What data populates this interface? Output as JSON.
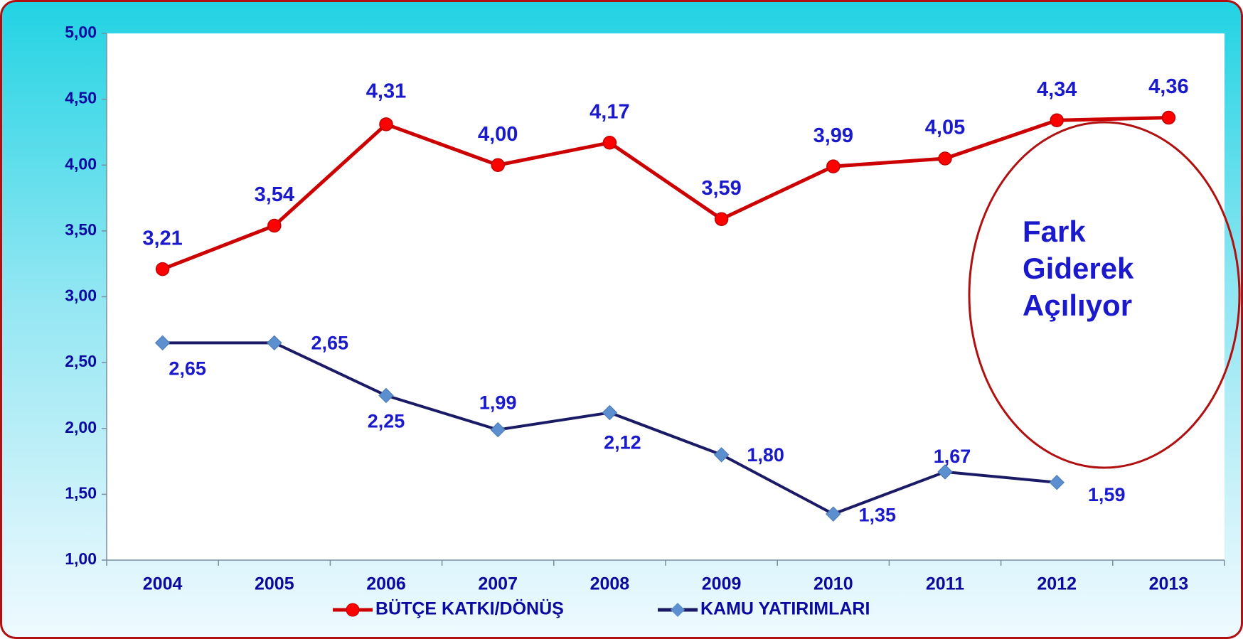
{
  "chart_data": {
    "type": "line",
    "categories": [
      "2004",
      "2005",
      "2006",
      "2007",
      "2008",
      "2009",
      "2010",
      "2011",
      "2012",
      "2013"
    ],
    "series": [
      {
        "name": "BÜTÇE KATKI/DÖNÜŞ",
        "color": "#cc0000",
        "marker_color": "#ff0000",
        "values": [
          3.21,
          3.54,
          4.31,
          4.0,
          4.17,
          3.59,
          3.99,
          4.05,
          4.34,
          4.36
        ],
        "value_labels": [
          "3,21",
          "3,54",
          "4,31",
          "4,00",
          "4,17",
          "3,59",
          "3,99",
          "4,05",
          "4,34",
          "4,36"
        ]
      },
      {
        "name": "KAMU YATIRIMLARI",
        "color": "#1a1a66",
        "marker_color": "#5b8fd0",
        "values": [
          2.65,
          2.65,
          2.25,
          1.99,
          2.12,
          1.8,
          1.35,
          1.67,
          1.59,
          null
        ],
        "value_labels": [
          "2,65",
          "2,65",
          "2,25",
          "1,99",
          "2,12",
          "1,80",
          "1,35",
          "1,67",
          "1,59",
          null
        ]
      }
    ],
    "ylim": [
      1,
      5
    ],
    "yticks": [
      {
        "value": 1,
        "label": "1,00"
      },
      {
        "value": 1.5,
        "label": "1,50"
      },
      {
        "value": 2,
        "label": "2,00"
      },
      {
        "value": 2.5,
        "label": "2,50"
      },
      {
        "value": 3,
        "label": "3,00"
      },
      {
        "value": 3.5,
        "label": "3,50"
      },
      {
        "value": 4,
        "label": "4,00"
      },
      {
        "value": 4.5,
        "label": "4,50"
      },
      {
        "value": 5,
        "label": "5,00"
      }
    ],
    "annotation": "Fark Giderek Açılıyor",
    "legend": "bottom",
    "grid": false
  }
}
